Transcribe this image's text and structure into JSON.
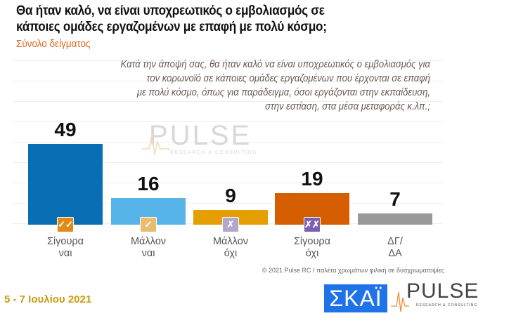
{
  "header": {
    "title_line1": "Θα ήταν καλό, να είναι υποχρεωτικός ο εμβολιασμός σε",
    "title_line2": "κάποιες ομάδες εργαζομένων με επαφή με πολύ κόσμο;",
    "subtitle": "Σύνολο δείγματος"
  },
  "question": [
    "Κατά την άποψή σας, θα ήταν καλό να είναι υποχρεωτικός ο εμβολιασμός για",
    "τον κορωνοϊό σε κάποιες ομάδες εργαζομένων που έρχονται σε επαφή",
    "με πολύ κόσμο, όπως για παράδειγμα, όσοι εργάζονται στην εκπαίδευση,",
    "στην εστίαση, στα μέσα μεταφοράς κ.λπ.;"
  ],
  "chart_data": {
    "type": "bar",
    "ylim": [
      0,
      60
    ],
    "grid": true,
    "categories": [
      [
        "Σίγουρα",
        "ναι"
      ],
      [
        "Μάλλον",
        "ναι"
      ],
      [
        "Μάλλον",
        "όχι"
      ],
      [
        "Σίγουρα",
        "όχι"
      ],
      [
        "ΔΓ/",
        "ΔΑ"
      ]
    ],
    "values": [
      49,
      16,
      9,
      19,
      7
    ],
    "colors": [
      "#0a6eb4",
      "#56b4e9",
      "#e69f00",
      "#d55e00",
      "#999999"
    ],
    "badges": [
      {
        "icon": "double-check-icon",
        "glyph": "✓✓",
        "color": "#e08a1a"
      },
      {
        "icon": "check-icon",
        "glyph": "✓",
        "color": "#e8bd6e"
      },
      {
        "icon": "cross-icon",
        "glyph": "✗",
        "color": "#b3a6cc"
      },
      {
        "icon": "double-cross-icon",
        "glyph": "✗✗",
        "color": "#7b5fb0"
      },
      null
    ]
  },
  "watermark": {
    "brand": "PULSE",
    "tagline": "RESEARCH & CONSULTING"
  },
  "footer": {
    "copyright": "© 2021 Pulse RC  /  παλέτα χρωμάτων φιλική σε δυσχρωματοψίες",
    "date": "5 - 7  Ιουλίου  2021",
    "logo_skai": "ΣΚΑΪ",
    "logo_pulse": "PULSE",
    "logo_pulse_tagline": "RESEARCH & CONSULTING"
  }
}
